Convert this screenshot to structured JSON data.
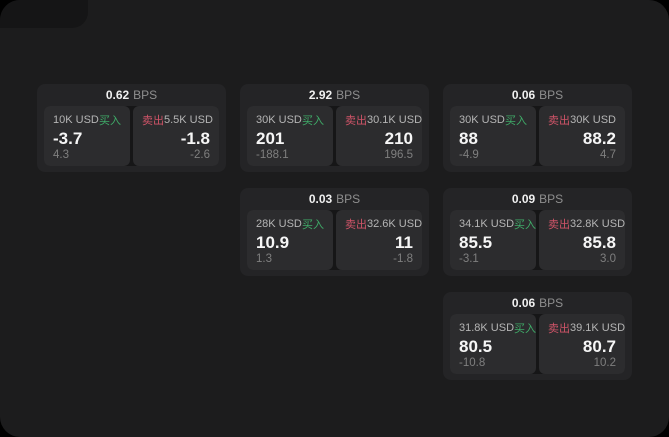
{
  "labels": {
    "bps_suffix": "BPS",
    "buy": "买入",
    "sell": "卖出"
  },
  "colors": {
    "buy_green": "#3fab68",
    "sell_red": "#d05468",
    "panel_bg": "#1c1c1d",
    "card_bg": "#242426",
    "tile_bg": "#2c2c2e"
  },
  "cards": [
    {
      "bps": "0.62",
      "buy": {
        "size": "10K USD",
        "price": "-3.7",
        "change": "4.3"
      },
      "sell": {
        "size": "5.5K USD",
        "price": "-1.8",
        "change": "-2.6"
      }
    },
    {
      "bps": "2.92",
      "buy": {
        "size": "30K USD",
        "price": "201",
        "change": "-188.1"
      },
      "sell": {
        "size": "30.1K USD",
        "price": "210",
        "change": "196.5"
      }
    },
    {
      "bps": "0.06",
      "buy": {
        "size": "30K USD",
        "price": "88",
        "change": "-4.9"
      },
      "sell": {
        "size": "30K USD",
        "price": "88.2",
        "change": "4.7"
      }
    },
    {
      "bps": "0.03",
      "buy": {
        "size": "28K USD",
        "price": "10.9",
        "change": "1.3"
      },
      "sell": {
        "size": "32.6K USD",
        "price": "11",
        "change": "-1.8"
      }
    },
    {
      "bps": "0.09",
      "buy": {
        "size": "34.1K USD",
        "price": "85.5",
        "change": "-3.1"
      },
      "sell": {
        "size": "32.8K USD",
        "price": "85.8",
        "change": "3.0"
      }
    },
    {
      "bps": "0.06",
      "buy": {
        "size": "31.8K USD",
        "price": "80.5",
        "change": "-10.8"
      },
      "sell": {
        "size": "39.1K USD",
        "price": "80.7",
        "change": "10.2"
      }
    }
  ]
}
